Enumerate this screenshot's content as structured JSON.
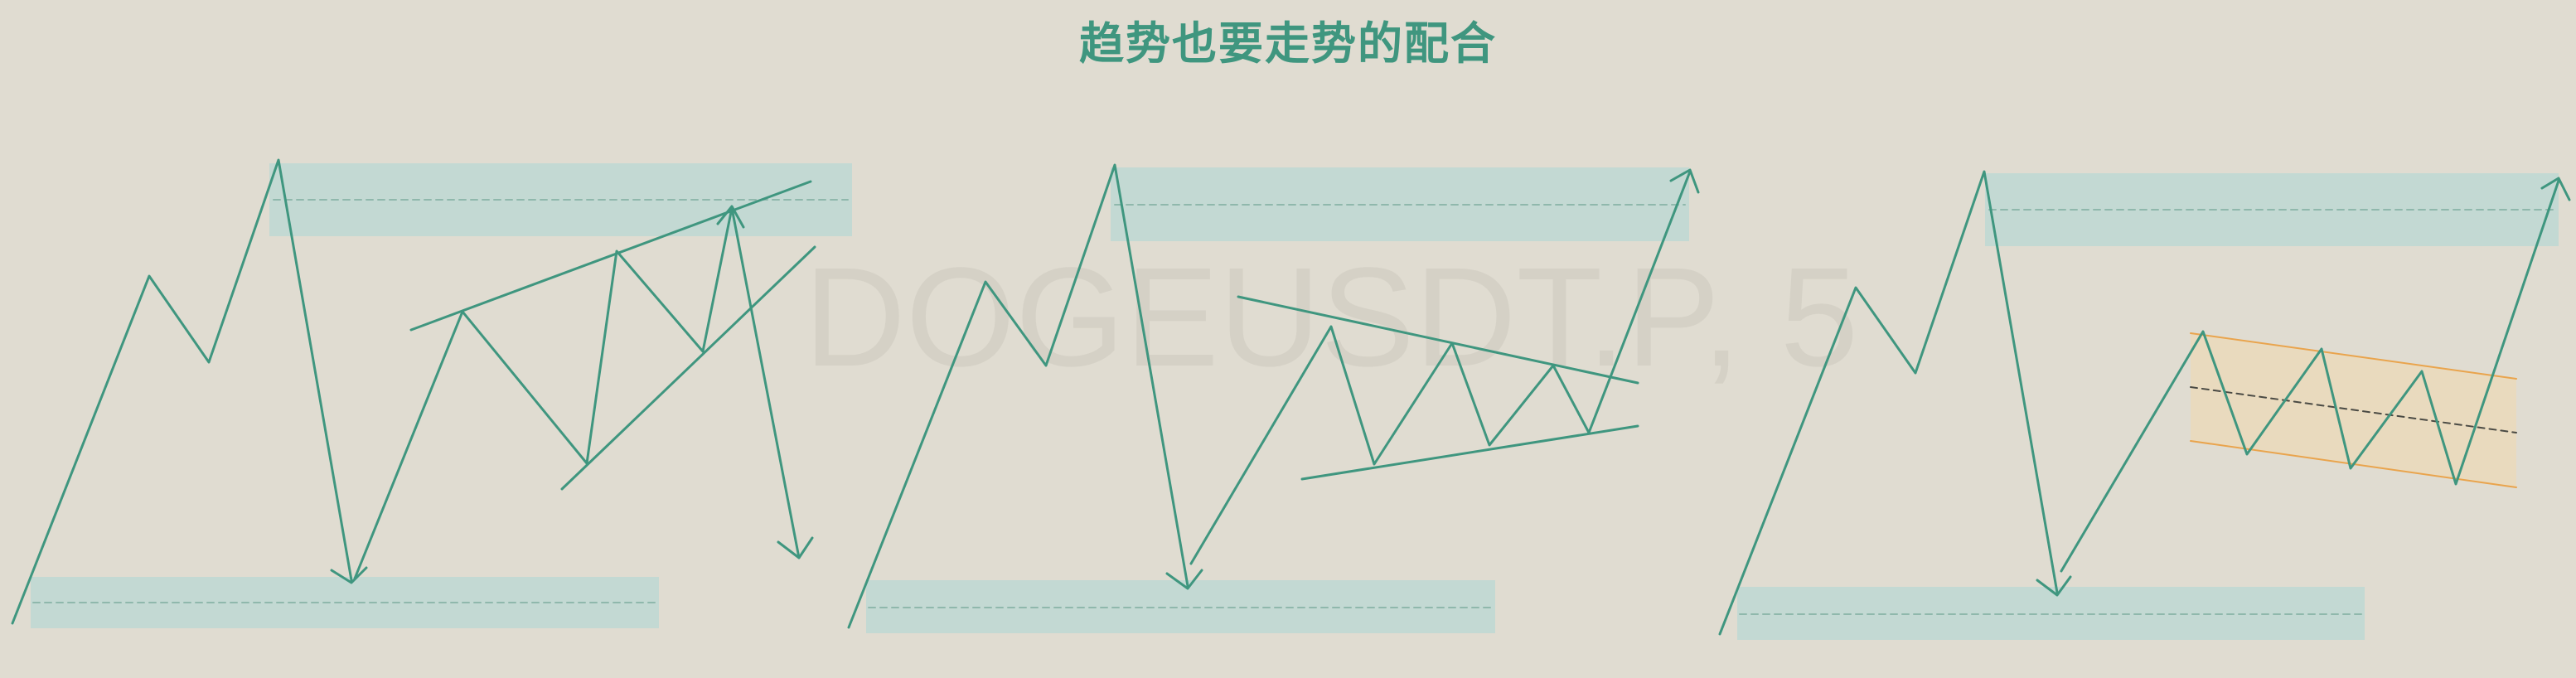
{
  "title": "趋势也要走势的配合",
  "watermark": "DOGEUSDT.P, 5",
  "colors": {
    "background": "#e0dcd1",
    "line": "#3f967f",
    "zone": "#c3d9d3",
    "channel_fill": "#ead9bb",
    "channel_line": "#e9a44d"
  }
}
